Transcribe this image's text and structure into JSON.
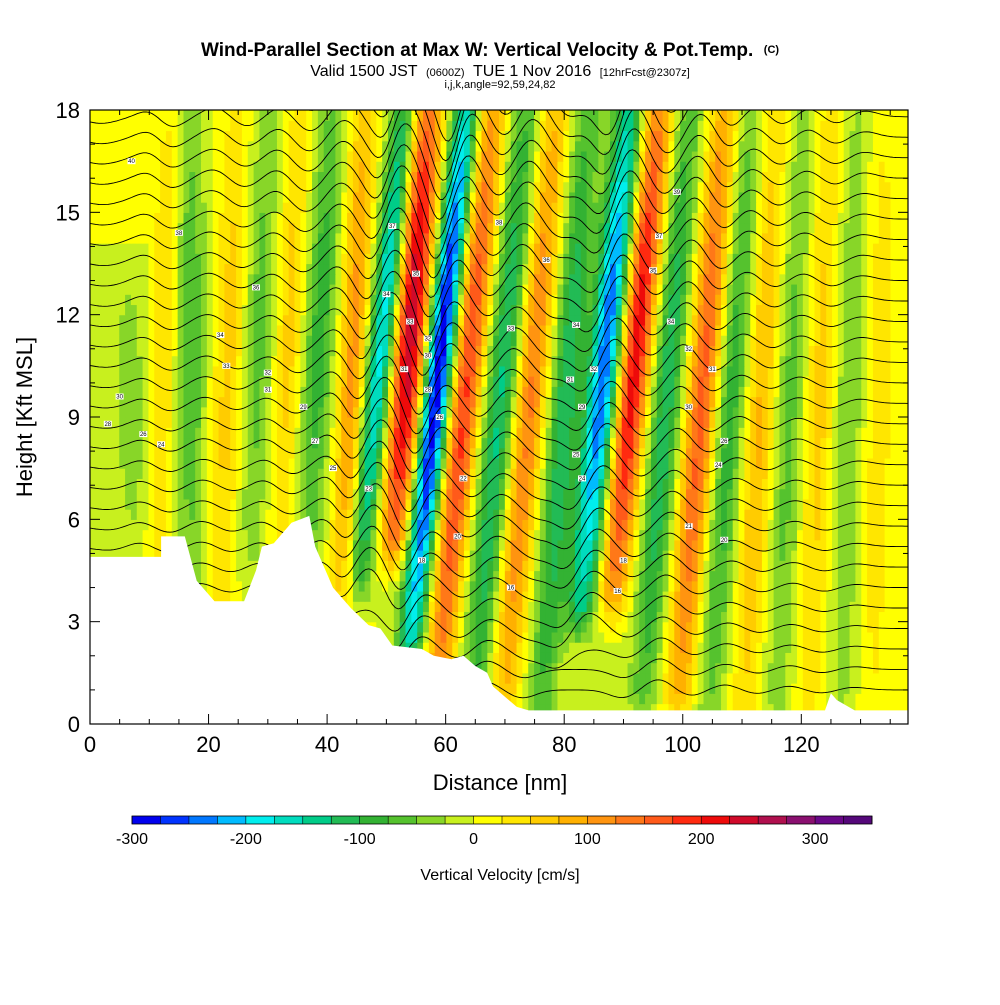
{
  "header": {
    "title": "Wind-Parallel Section at Max W: Vertical Velocity & Pot.Temp.",
    "title_mark": "(C)",
    "valid_prefix": "Valid 1500 JST",
    "valid_utc": "(0600Z)",
    "valid_date": "TUE 1 Nov 2016",
    "forecast": "[12hrFcst@2307z]",
    "indices": "i,j,k,angle=92,59,24,82"
  },
  "chart_data": {
    "type": "heatmap",
    "xlabel": "Distance [nm]",
    "ylabel": "Height [Kft MSL]",
    "xlim": [
      0,
      138
    ],
    "ylim": [
      0,
      18
    ],
    "x_ticks": [
      0,
      20,
      40,
      60,
      80,
      100,
      120
    ],
    "y_ticks": [
      0,
      3,
      6,
      9,
      12,
      15,
      18
    ],
    "colorbar": {
      "title": "Vertical Velocity [cm/s]",
      "min": -300,
      "max": 350,
      "step": 25,
      "tick_values": [
        -300,
        -200,
        -100,
        0,
        100,
        200,
        300
      ],
      "tick_labels": [
        "-300",
        "-200",
        "-100",
        "0",
        "100",
        "200",
        "300"
      ],
      "colors": [
        "#0000ee",
        "#0033ff",
        "#0077ff",
        "#00bbff",
        "#00eeee",
        "#00dcbe",
        "#00cc88",
        "#22bb55",
        "#33b233",
        "#55c22e",
        "#88d628",
        "#c8f01e",
        "#ffff00",
        "#ffe600",
        "#ffcc00",
        "#ffb000",
        "#ff9410",
        "#ff7818",
        "#ff5a1a",
        "#ff2a10",
        "#ee0a0a",
        "#d00a2a",
        "#b0104e",
        "#8a1070",
        "#6a0888",
        "#55087a"
      ]
    },
    "w_features": [
      {
        "center_nm": 7,
        "amp_cms": -40,
        "width_nm": 3,
        "top_kft": 13,
        "bottom_kft": 5.5,
        "tilt_nm_per_kft": -0.1
      },
      {
        "center_nm": 12,
        "amp_cms": 50,
        "width_nm": 2.2,
        "top_kft": 18,
        "bottom_kft": 3.5,
        "tilt_nm_per_kft": 0.15
      },
      {
        "center_nm": 17,
        "amp_cms": -70,
        "width_nm": 2.5,
        "top_kft": 18,
        "bottom_kft": 4,
        "tilt_nm_per_kft": 0
      },
      {
        "center_nm": 23,
        "amp_cms": 60,
        "width_nm": 2.5,
        "top_kft": 18,
        "bottom_kft": 3.5,
        "tilt_nm_per_kft": 0.2
      },
      {
        "center_nm": 28,
        "amp_cms": -60,
        "width_nm": 2.5,
        "top_kft": 18,
        "bottom_kft": 5,
        "tilt_nm_per_kft": 0.2
      },
      {
        "center_nm": 33,
        "amp_cms": 60,
        "width_nm": 2.2,
        "top_kft": 18,
        "bottom_kft": 5.5,
        "tilt_nm_per_kft": 0.25
      },
      {
        "center_nm": 38,
        "amp_cms": -90,
        "width_nm": 2.5,
        "top_kft": 18,
        "bottom_kft": 5,
        "tilt_nm_per_kft": 0.3
      },
      {
        "center_nm": 44,
        "amp_cms": 110,
        "width_nm": 2.3,
        "top_kft": 18,
        "bottom_kft": 3.5,
        "tilt_nm_per_kft": 0.25
      },
      {
        "center_nm": 48,
        "amp_cms": -190,
        "width_nm": 2.2,
        "top_kft": 18,
        "bottom_kft": 4.5,
        "tilt_nm_per_kft": 0.55
      },
      {
        "center_nm": 53,
        "amp_cms": 250,
        "width_nm": 2.6,
        "top_kft": 18,
        "bottom_kft": 5.5,
        "tilt_nm_per_kft": 0.45
      },
      {
        "center_nm": 58,
        "amp_cms": -300,
        "width_nm": 2.2,
        "top_kft": 18,
        "bottom_kft": 2.5,
        "tilt_nm_per_kft": 0.6
      },
      {
        "center_nm": 63,
        "amp_cms": 180,
        "width_nm": 2.4,
        "top_kft": 18,
        "bottom_kft": 0.5,
        "tilt_nm_per_kft": 0.55
      },
      {
        "center_nm": 69,
        "amp_cms": -130,
        "width_nm": 2.5,
        "top_kft": 18,
        "bottom_kft": 0.5,
        "tilt_nm_per_kft": 0.5
      },
      {
        "center_nm": 74,
        "amp_cms": 130,
        "width_nm": 2.5,
        "top_kft": 18,
        "bottom_kft": 0.5,
        "tilt_nm_per_kft": 0.5
      },
      {
        "center_nm": 80,
        "amp_cms": -120,
        "width_nm": 2.5,
        "top_kft": 18,
        "bottom_kft": 0.5,
        "tilt_nm_per_kft": 0.45
      },
      {
        "center_nm": 86,
        "amp_cms": -250,
        "width_nm": 2.6,
        "top_kft": 18,
        "bottom_kft": 3.5,
        "tilt_nm_per_kft": 0.55
      },
      {
        "center_nm": 91,
        "amp_cms": 220,
        "width_nm": 2.6,
        "top_kft": 18,
        "bottom_kft": 4,
        "tilt_nm_per_kft": 0.55
      },
      {
        "center_nm": 97,
        "amp_cms": -120,
        "width_nm": 2.5,
        "top_kft": 18,
        "bottom_kft": 1,
        "tilt_nm_per_kft": 0.45
      },
      {
        "center_nm": 103,
        "amp_cms": 160,
        "width_nm": 2.5,
        "top_kft": 18,
        "bottom_kft": 1,
        "tilt_nm_per_kft": 0.45
      },
      {
        "center_nm": 108,
        "amp_cms": -90,
        "width_nm": 2.5,
        "top_kft": 18,
        "bottom_kft": 0.5,
        "tilt_nm_per_kft": 0.4
      },
      {
        "center_nm": 113,
        "amp_cms": 80,
        "width_nm": 2.5,
        "top_kft": 18,
        "bottom_kft": 0.5,
        "tilt_nm_per_kft": 0.3
      },
      {
        "center_nm": 118,
        "amp_cms": -60,
        "width_nm": 2.5,
        "top_kft": 18,
        "bottom_kft": 0.5,
        "tilt_nm_per_kft": 0.25
      },
      {
        "center_nm": 123,
        "amp_cms": 60,
        "width_nm": 2.5,
        "top_kft": 18,
        "bottom_kft": 0.5,
        "tilt_nm_per_kft": 0.2
      },
      {
        "center_nm": 128,
        "amp_cms": -50,
        "width_nm": 2.5,
        "top_kft": 18,
        "bottom_kft": 0.5,
        "tilt_nm_per_kft": 0.15
      },
      {
        "center_nm": 133,
        "amp_cms": 40,
        "width_nm": 2.5,
        "top_kft": 18,
        "bottom_kft": 0.5,
        "tilt_nm_per_kft": 0.1
      }
    ],
    "terrain_kft": [
      [
        0,
        4.9
      ],
      [
        12,
        4.9
      ],
      [
        12,
        5.5
      ],
      [
        16,
        5.5
      ],
      [
        18,
        4.2
      ],
      [
        21,
        3.6
      ],
      [
        26,
        3.6
      ],
      [
        28,
        4.5
      ],
      [
        29,
        5.2
      ],
      [
        31,
        5.3
      ],
      [
        34,
        5.9
      ],
      [
        37,
        6.1
      ],
      [
        38,
        5.2
      ],
      [
        41,
        4.0
      ],
      [
        44,
        3.4
      ],
      [
        47,
        2.9
      ],
      [
        49,
        2.8
      ],
      [
        51,
        2.3
      ],
      [
        56,
        2.2
      ],
      [
        58,
        2.0
      ],
      [
        61,
        1.9
      ],
      [
        63,
        2.0
      ],
      [
        65,
        1.7
      ],
      [
        67,
        1.5
      ],
      [
        68,
        1.1
      ],
      [
        70,
        0.8
      ],
      [
        72,
        0.5
      ],
      [
        74,
        0.4
      ],
      [
        124,
        0.4
      ],
      [
        125,
        0.9
      ],
      [
        126,
        0.7
      ],
      [
        129,
        0.4
      ],
      [
        138,
        0.4
      ]
    ],
    "theta_contour_labels": [
      {
        "x_nm": 7,
        "y_kft": 16.5,
        "label": "40"
      },
      {
        "x_nm": 15,
        "y_kft": 14.4,
        "label": "38"
      },
      {
        "x_nm": 28,
        "y_kft": 12.8,
        "label": "36"
      },
      {
        "x_nm": 22,
        "y_kft": 11.4,
        "label": "34"
      },
      {
        "x_nm": 23,
        "y_kft": 10.5,
        "label": "33"
      },
      {
        "x_nm": 30,
        "y_kft": 10.3,
        "label": "32"
      },
      {
        "x_nm": 30,
        "y_kft": 9.8,
        "label": "31"
      },
      {
        "x_nm": 5,
        "y_kft": 9.6,
        "label": "30"
      },
      {
        "x_nm": 3,
        "y_kft": 8.8,
        "label": "28"
      },
      {
        "x_nm": 9,
        "y_kft": 8.5,
        "label": "26"
      },
      {
        "x_nm": 12,
        "y_kft": 8.2,
        "label": "24"
      },
      {
        "x_nm": 36,
        "y_kft": 9.3,
        "label": "29"
      },
      {
        "x_nm": 38,
        "y_kft": 8.3,
        "label": "27"
      },
      {
        "x_nm": 41,
        "y_kft": 7.5,
        "label": "25"
      },
      {
        "x_nm": 47,
        "y_kft": 6.9,
        "label": "23"
      },
      {
        "x_nm": 51,
        "y_kft": 14.6,
        "label": "37"
      },
      {
        "x_nm": 55,
        "y_kft": 13.2,
        "label": "35"
      },
      {
        "x_nm": 50,
        "y_kft": 12.6,
        "label": "34"
      },
      {
        "x_nm": 54,
        "y_kft": 11.8,
        "label": "33"
      },
      {
        "x_nm": 57,
        "y_kft": 11.3,
        "label": "32"
      },
      {
        "x_nm": 53,
        "y_kft": 10.4,
        "label": "31"
      },
      {
        "x_nm": 57,
        "y_kft": 10.8,
        "label": "30"
      },
      {
        "x_nm": 57,
        "y_kft": 9.8,
        "label": "28"
      },
      {
        "x_nm": 59,
        "y_kft": 9.0,
        "label": "26"
      },
      {
        "x_nm": 63,
        "y_kft": 7.2,
        "label": "22"
      },
      {
        "x_nm": 62,
        "y_kft": 5.5,
        "label": "20"
      },
      {
        "x_nm": 56,
        "y_kft": 4.8,
        "label": "18"
      },
      {
        "x_nm": 69,
        "y_kft": 14.7,
        "label": "38"
      },
      {
        "x_nm": 77,
        "y_kft": 13.6,
        "label": "36"
      },
      {
        "x_nm": 71,
        "y_kft": 11.6,
        "label": "33"
      },
      {
        "x_nm": 82,
        "y_kft": 11.7,
        "label": "34"
      },
      {
        "x_nm": 81,
        "y_kft": 10.1,
        "label": "31"
      },
      {
        "x_nm": 85,
        "y_kft": 10.4,
        "label": "32"
      },
      {
        "x_nm": 83,
        "y_kft": 9.3,
        "label": "29"
      },
      {
        "x_nm": 82,
        "y_kft": 7.9,
        "label": "25"
      },
      {
        "x_nm": 83,
        "y_kft": 7.2,
        "label": "24"
      },
      {
        "x_nm": 71,
        "y_kft": 4.0,
        "label": "16"
      },
      {
        "x_nm": 90,
        "y_kft": 4.8,
        "label": "18"
      },
      {
        "x_nm": 89,
        "y_kft": 3.9,
        "label": "16"
      },
      {
        "x_nm": 99,
        "y_kft": 15.6,
        "label": "39"
      },
      {
        "x_nm": 96,
        "y_kft": 14.3,
        "label": "37"
      },
      {
        "x_nm": 95,
        "y_kft": 13.3,
        "label": "35"
      },
      {
        "x_nm": 98,
        "y_kft": 11.8,
        "label": "34"
      },
      {
        "x_nm": 101,
        "y_kft": 11.0,
        "label": "32"
      },
      {
        "x_nm": 105,
        "y_kft": 10.4,
        "label": "31"
      },
      {
        "x_nm": 101,
        "y_kft": 9.3,
        "label": "30"
      },
      {
        "x_nm": 107,
        "y_kft": 8.3,
        "label": "26"
      },
      {
        "x_nm": 106,
        "y_kft": 7.6,
        "label": "24"
      },
      {
        "x_nm": 101,
        "y_kft": 5.8,
        "label": "21"
      },
      {
        "x_nm": 107,
        "y_kft": 5.4,
        "label": "20"
      }
    ]
  }
}
